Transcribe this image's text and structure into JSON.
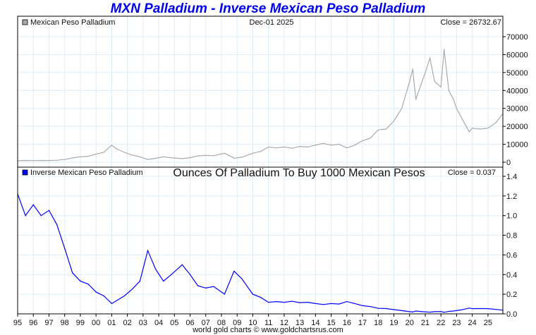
{
  "title": "MXN Palladium - Inverse Mexican Peso Palladium",
  "footer": "world gold charts © www.goldchartsrus.com",
  "chart_data": [
    {
      "type": "line",
      "legend": "Mexican Peso Palladium",
      "date_label": "Dec-01  2025",
      "close_label": "Close = 26732.67",
      "color": "#aaaaaa",
      "ylim": [
        0,
        70000
      ],
      "yticks": [
        0,
        10000,
        20000,
        30000,
        40000,
        50000,
        60000,
        70000
      ],
      "ytick_labels": [
        "0",
        "10000",
        "20000",
        "30000",
        "40000",
        "50000",
        "60000",
        "70000"
      ],
      "x": [
        1995.0,
        1995.5,
        1996.0,
        1996.5,
        1997.0,
        1997.5,
        1998.0,
        1998.5,
        1999.0,
        1999.5,
        2000.0,
        2000.5,
        2001.0,
        2001.3,
        2001.8,
        2002.3,
        2002.8,
        2003.3,
        2003.8,
        2004.3,
        2004.8,
        2005.5,
        2006.0,
        2006.5,
        2007.0,
        2007.5,
        2008.2,
        2008.8,
        2009.3,
        2010.0,
        2010.5,
        2011.0,
        2011.5,
        2012.0,
        2012.5,
        2013.0,
        2013.5,
        2014.0,
        2014.5,
        2015.0,
        2015.5,
        2016.0,
        2016.5,
        2017.0,
        2017.5,
        2018.0,
        2018.5,
        2019.0,
        2019.5,
        2020.0,
        2020.2,
        2020.4,
        2020.8,
        2021.0,
        2021.3,
        2021.6,
        2022.0,
        2022.2,
        2022.5,
        2022.8,
        2023.0,
        2023.3,
        2023.8,
        2024.0,
        2024.5,
        2025.0,
        2025.5,
        2025.92
      ],
      "y": [
        820,
        1000,
        900,
        1000,
        950,
        1100,
        1500,
        2400,
        3000,
        3300,
        4500,
        5500,
        9500,
        7500,
        5500,
        4000,
        3000,
        1550,
        2200,
        3000,
        2500,
        2000,
        2500,
        3500,
        3800,
        3600,
        5000,
        2300,
        2800,
        5000,
        6000,
        8500,
        8000,
        8500,
        7800,
        8800,
        8500,
        9500,
        10500,
        9500,
        10000,
        8000,
        9500,
        12000,
        13500,
        18000,
        18500,
        23000,
        30000,
        45000,
        52000,
        35000,
        45000,
        50000,
        58000,
        45000,
        42000,
        63000,
        40000,
        35000,
        30000,
        25000,
        17000,
        19000,
        18500,
        19000,
        22000,
        26733
      ]
    },
    {
      "type": "line",
      "legend": "Inverse Mexican Peso Palladium",
      "subtitle": "Ounces Of Palladium To Buy 1000 Mexican Pesos",
      "close_label": "Close = 0.037",
      "color": "#0000ff",
      "ylim": [
        0,
        1.4
      ],
      "yticks": [
        0,
        0.2,
        0.4,
        0.6,
        0.8,
        1.0,
        1.2,
        1.4
      ],
      "ytick_labels": [
        "0.0",
        "0.2",
        "0.4",
        "0.6",
        "0.8",
        "1.0",
        "1.2",
        "1.4"
      ],
      "x": [
        1995.0,
        1995.5,
        1996.0,
        1996.5,
        1997.0,
        1997.5,
        1998.0,
        1998.5,
        1999.0,
        1999.5,
        2000.0,
        2000.5,
        2001.0,
        2001.3,
        2001.8,
        2002.3,
        2002.8,
        2003.3,
        2003.8,
        2004.3,
        2004.8,
        2005.5,
        2006.0,
        2006.5,
        2007.0,
        2007.5,
        2008.2,
        2008.8,
        2009.3,
        2010.0,
        2010.5,
        2011.0,
        2011.5,
        2012.0,
        2012.5,
        2013.0,
        2013.5,
        2014.0,
        2014.5,
        2015.0,
        2015.5,
        2016.0,
        2016.5,
        2017.0,
        2017.5,
        2018.0,
        2018.5,
        2019.0,
        2019.5,
        2020.0,
        2020.2,
        2020.4,
        2020.8,
        2021.0,
        2021.3,
        2021.6,
        2022.0,
        2022.2,
        2022.5,
        2022.8,
        2023.0,
        2023.3,
        2023.8,
        2024.0,
        2024.5,
        2025.0,
        2025.5,
        2025.92
      ],
      "y": [
        1.22,
        1.0,
        1.111,
        1.0,
        1.053,
        0.909,
        0.667,
        0.417,
        0.333,
        0.303,
        0.222,
        0.182,
        0.105,
        0.133,
        0.182,
        0.25,
        0.333,
        0.645,
        0.455,
        0.333,
        0.4,
        0.5,
        0.4,
        0.286,
        0.263,
        0.278,
        0.2,
        0.435,
        0.357,
        0.2,
        0.167,
        0.118,
        0.125,
        0.118,
        0.128,
        0.114,
        0.118,
        0.105,
        0.095,
        0.105,
        0.1,
        0.125,
        0.105,
        0.083,
        0.074,
        0.056,
        0.054,
        0.043,
        0.033,
        0.022,
        0.019,
        0.029,
        0.022,
        0.02,
        0.017,
        0.022,
        0.024,
        0.016,
        0.025,
        0.029,
        0.033,
        0.04,
        0.059,
        0.053,
        0.054,
        0.053,
        0.045,
        0.037
      ]
    }
  ],
  "xtick_labels": [
    "95",
    "96",
    "97",
    "98",
    "99",
    "00",
    "01",
    "02",
    "03",
    "04",
    "05",
    "06",
    "07",
    "08",
    "09",
    "10",
    "11",
    "12",
    "13",
    "14",
    "15",
    "16",
    "17",
    "18",
    "19",
    "20",
    "21",
    "22",
    "23",
    "24",
    "25"
  ]
}
